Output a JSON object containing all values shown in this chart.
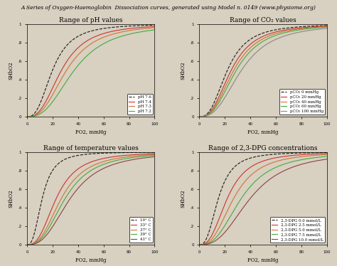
{
  "title": "A Series of Oxygen-Haemoglobin  Dissociation curves, generated using Model n. 0149 (www.physiome.org)",
  "background_color": "#d8d0c0",
  "subplot_titles": [
    "Range of pH values",
    "Range of CO₂ values",
    "Range of temperature values",
    "Range of 2,3-DPG concentrations"
  ],
  "xlabel": "PO2, mmHg",
  "ylabel": "SHbO2",
  "xlim": [
    0,
    100
  ],
  "ylim": [
    0,
    1
  ],
  "ph_colors": [
    "#1a1a1a",
    "#cc3333",
    "#cc7733",
    "#44aa44"
  ],
  "ph_labels": [
    "pH 7.6",
    "pH 7.4",
    "pH 7.3",
    "pH 7.2"
  ],
  "ph_p50": [
    20,
    27,
    31,
    37
  ],
  "co2_colors": [
    "#1a1a1a",
    "#cc3333",
    "#cc7733",
    "#44aa44",
    "#888888"
  ],
  "co2_labels": [
    "pCO₂ 0 mmHg",
    "pCO₂ 20 mmHg",
    "pCO₂ 40 mmHg",
    "pCO₂ 60 mmHg",
    "pCO₂ 100 mmHg"
  ],
  "co2_p50": [
    22,
    25,
    27,
    29,
    33
  ],
  "temp_colors": [
    "#1a1a1a",
    "#cc3333",
    "#cc7733",
    "#44aa44",
    "#884444"
  ],
  "temp_labels": [
    "10° C",
    "33° C",
    "37° C",
    "39° C",
    "41° C"
  ],
  "temp_p50": [
    12,
    23,
    27,
    30,
    34
  ],
  "dpg_colors": [
    "#1a1a1a",
    "#cc3333",
    "#cc7733",
    "#44aa44",
    "#884444"
  ],
  "dpg_labels": [
    "2,3-DPG 0.0 mmol/L",
    "2,3-DPG 2.5 mmol/L",
    "2,3-DPG 5.0 mmol/L",
    "2,3-DPG 7.5 mmol/L",
    "2,3-DPG 10.0 mmol/L"
  ],
  "dpg_p50": [
    15,
    22,
    27,
    33,
    40
  ]
}
